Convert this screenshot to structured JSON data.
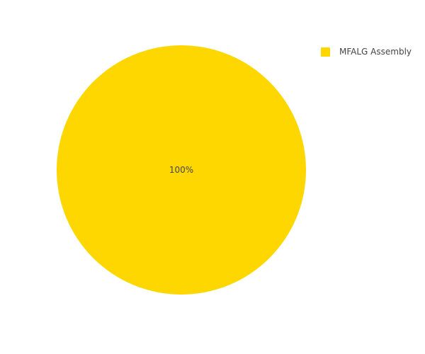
{
  "chart_data": {
    "type": "pie",
    "labels": [
      "MFALG Assembly"
    ],
    "values": [
      100
    ],
    "slice_labels": [
      "100%"
    ],
    "colors": [
      "#ffd700"
    ],
    "legend": {
      "placement": "top-right",
      "entries": [
        "MFALG Assembly"
      ]
    },
    "title": ""
  }
}
